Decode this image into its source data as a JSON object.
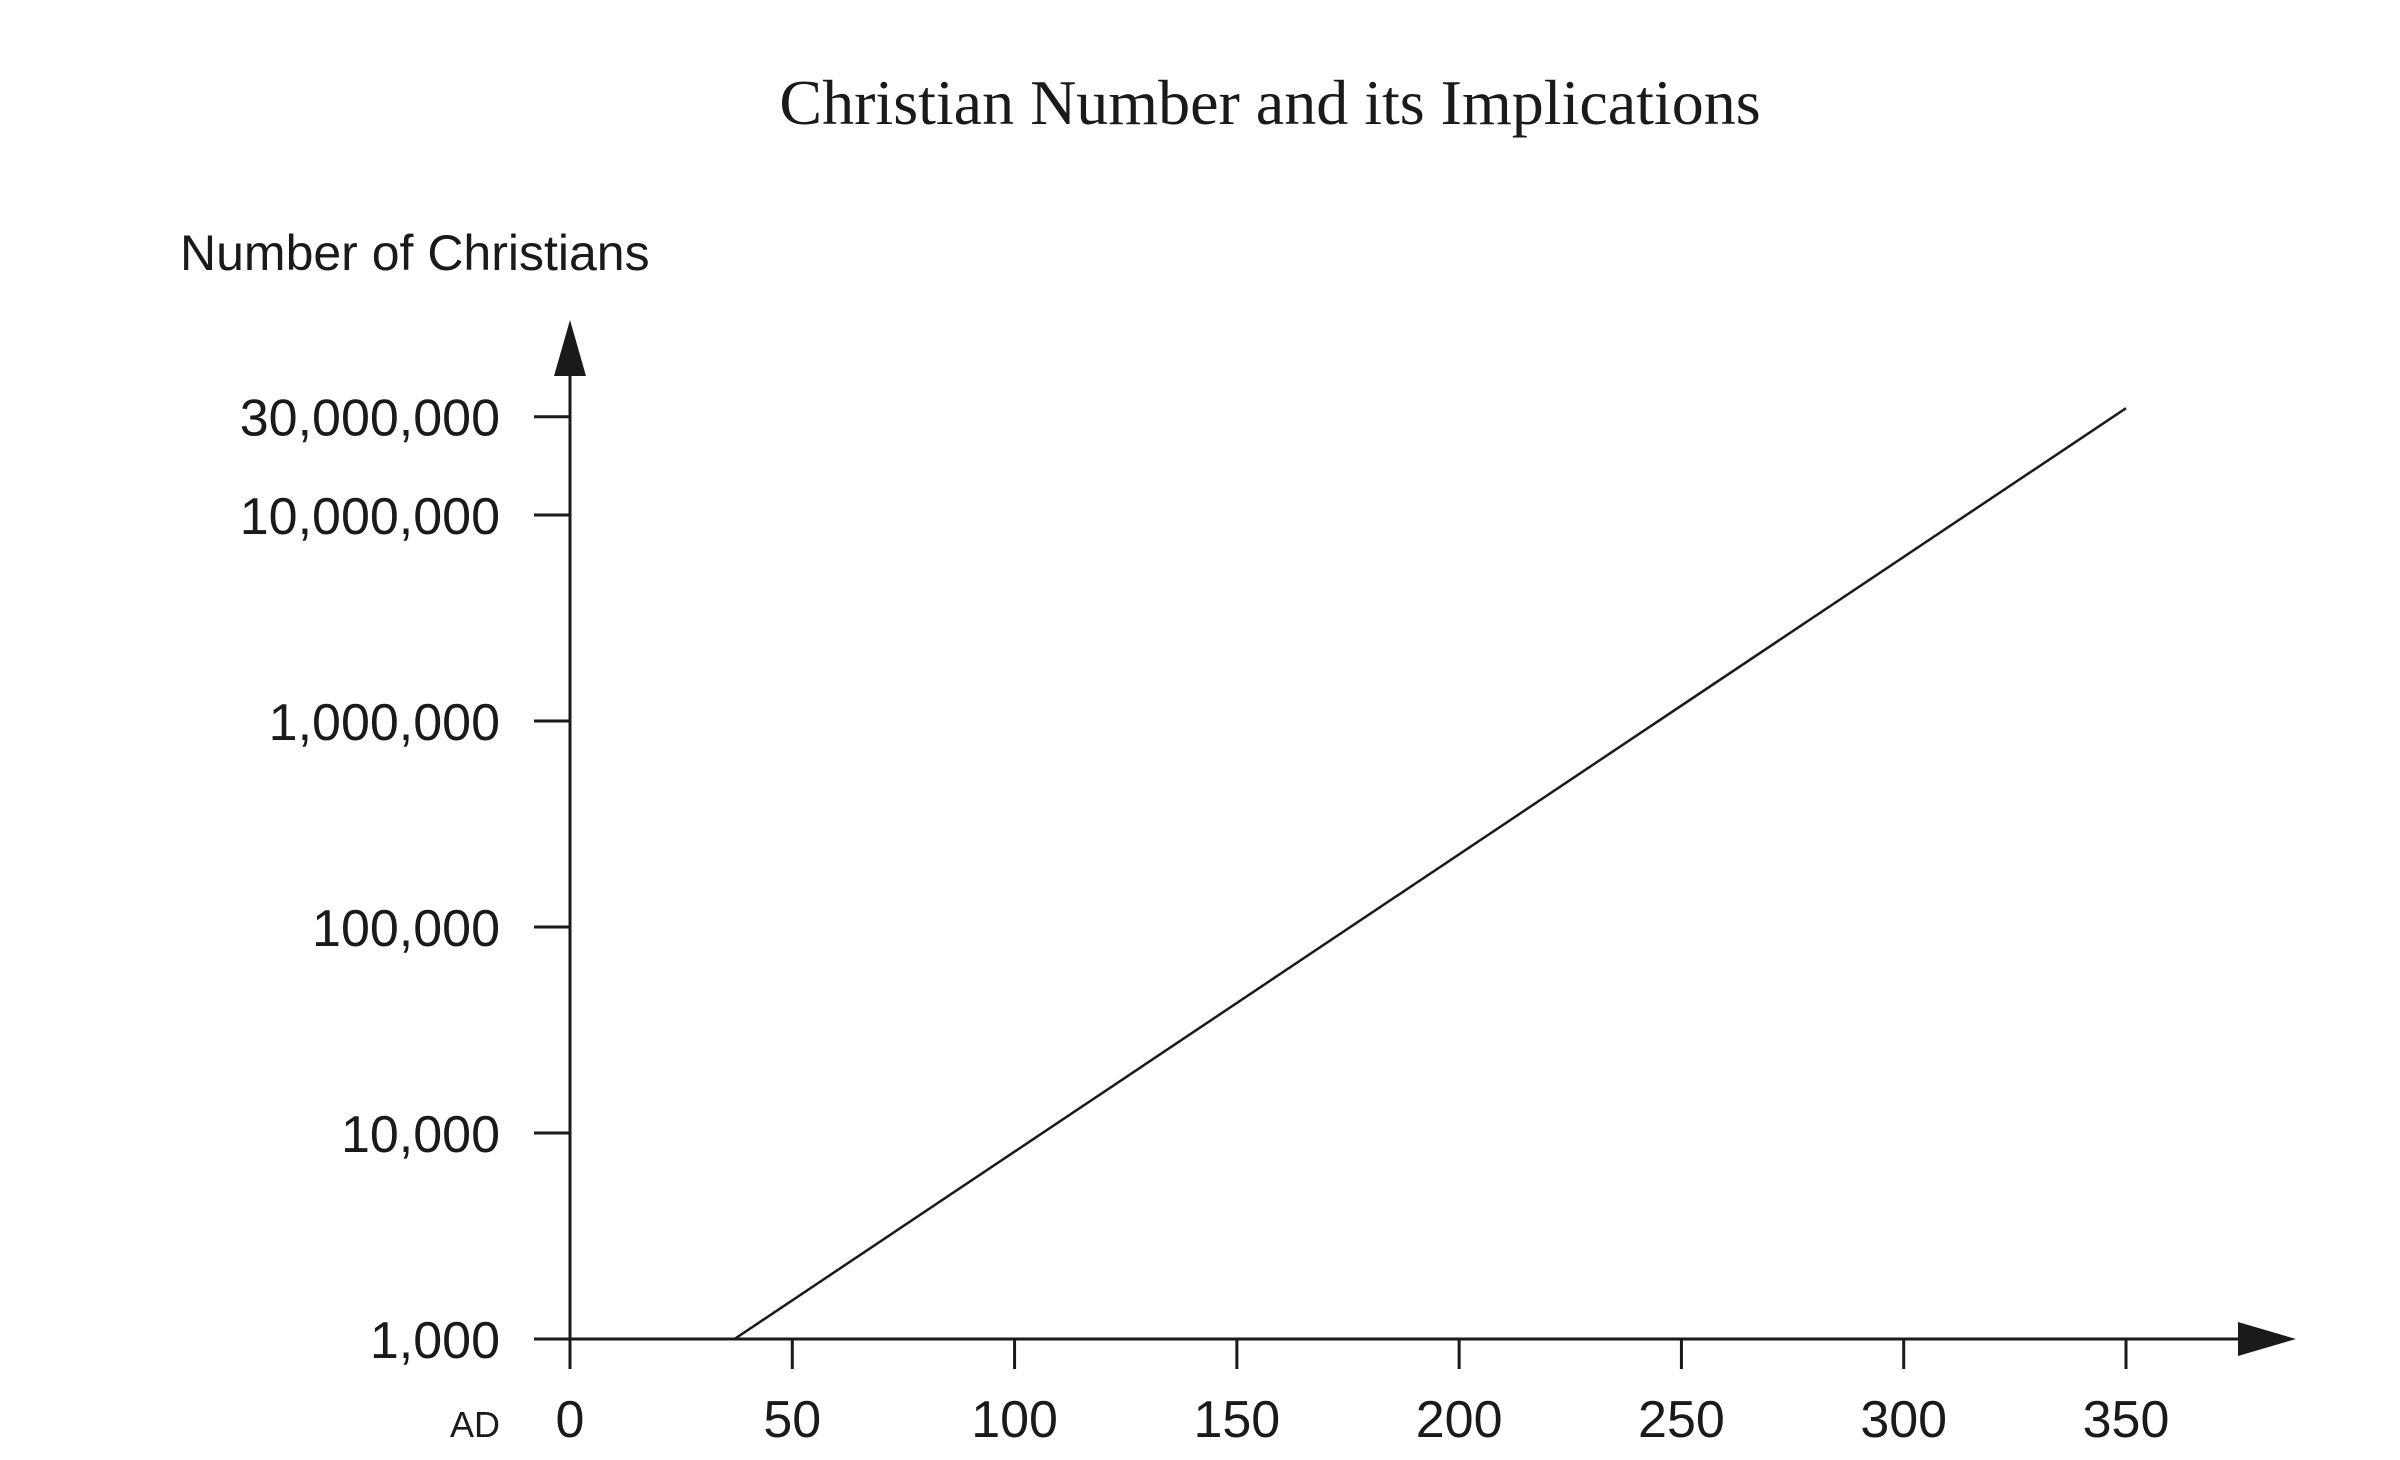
{
  "chart_data": {
    "type": "line",
    "title": "Christian Number and its Implications",
    "ylabel": "Number of Christians",
    "xlabel": "",
    "x_prefix": "AD",
    "y_scale": "log",
    "grid": false,
    "xlim": [
      0,
      385
    ],
    "ylim": [
      1000,
      60000000
    ],
    "x_ticks": [
      {
        "value": 0,
        "label": "0"
      },
      {
        "value": 50,
        "label": "50"
      },
      {
        "value": 100,
        "label": "100"
      },
      {
        "value": 150,
        "label": "150"
      },
      {
        "value": 200,
        "label": "200"
      },
      {
        "value": 250,
        "label": "250"
      },
      {
        "value": 300,
        "label": "300"
      },
      {
        "value": 350,
        "label": "350"
      }
    ],
    "y_ticks": [
      {
        "value": 1000,
        "label": "1,000"
      },
      {
        "value": 10000,
        "label": "10,000"
      },
      {
        "value": 100000,
        "label": "100,000"
      },
      {
        "value": 1000000,
        "label": "1,000,000"
      },
      {
        "value": 10000000,
        "label": "10,000,000"
      },
      {
        "value": 30000000,
        "label": "30,000,000"
      }
    ],
    "series": [
      {
        "x": [
          37,
          350
        ],
        "values": [
          1000,
          33000000
        ]
      }
    ]
  }
}
